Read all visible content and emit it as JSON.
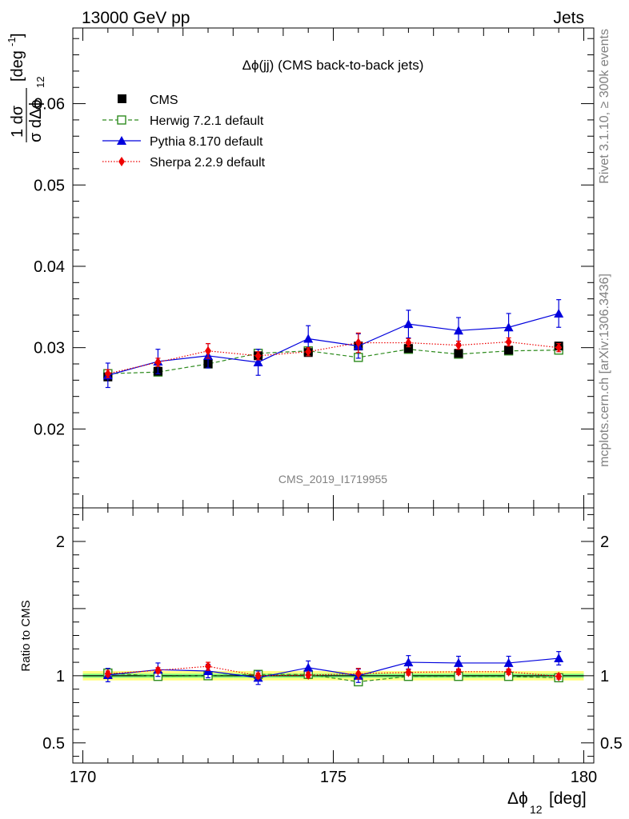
{
  "header": {
    "left": "13000 GeV pp",
    "right": "Jets"
  },
  "side": {
    "rivet": "Rivet 3.1.10, ≥ 300k events",
    "mcplots": "mcplots.cern.ch [arXiv:1306.3436]"
  },
  "colors": {
    "cms": "#000000",
    "herwig": "#2e8b1e",
    "pythia": "#0000dd",
    "sherpa": "#ee0000",
    "band_outer": "#ffff80",
    "band_inner": "#80ff80"
  },
  "chart_data": [
    {
      "type": "line",
      "title": "Δϕ(jj) (CMS back-to-back jets)",
      "watermark": "CMS_2019_I1719955",
      "ylabel": "1/σ dσ/dΔϕ_12 [deg^-1]",
      "ylabel_main": "[deg",
      "ylabel_sup": "-1",
      "ylabel_frac_num": "1  dσ",
      "ylabel_frac_den": "σ dΔϕ",
      "ylabel_sub": "12",
      "xlabel": "Δϕ",
      "xlabel_sub": "12",
      "xlabel_unit": "[deg]",
      "xlim": [
        169.8,
        180.2
      ],
      "ylim": [
        0.0103,
        0.0693
      ],
      "yticks": [
        "0.02",
        "0.03",
        "0.04",
        "0.05",
        "0.06"
      ],
      "xticks": [
        "170",
        "175",
        "180"
      ],
      "x": [
        170.5,
        171.5,
        172.5,
        173.5,
        174.5,
        175.5,
        176.5,
        177.5,
        178.5,
        179.5
      ],
      "series": [
        {
          "name": "CMS",
          "values": [
            0.0264,
            0.0271,
            0.028,
            0.029,
            0.0294,
            0.0302,
            0.0299,
            0.0293,
            0.0297,
            0.0302
          ]
        },
        {
          "name": "Herwig 7.2.1 default",
          "values": [
            0.0268,
            0.027,
            0.028,
            0.0293,
            0.0296,
            0.0288,
            0.0298,
            0.0292,
            0.0296,
            0.0297
          ]
        },
        {
          "name": "Pythia 8.170 default",
          "values": [
            0.0266,
            0.0283,
            0.029,
            0.0282,
            0.0311,
            0.0302,
            0.0329,
            0.0321,
            0.0325,
            0.0342
          ],
          "err": [
            0.0015,
            0.0015,
            0.0015,
            0.0016,
            0.0016,
            0.0015,
            0.0017,
            0.0016,
            0.0017,
            0.0017
          ]
        },
        {
          "name": "Sherpa 2.2.9 default",
          "values": [
            0.0268,
            0.0282,
            0.0296,
            0.029,
            0.0295,
            0.0306,
            0.0306,
            0.0303,
            0.0307,
            0.03
          ],
          "err": [
            0.0005,
            0.0005,
            0.0009,
            0.0005,
            0.0005,
            0.0012,
            0.0005,
            0.0005,
            0.0005,
            0.0005
          ]
        }
      ]
    },
    {
      "type": "line",
      "ylabel": "Ratio to CMS",
      "xlim": [
        169.8,
        180.2
      ],
      "ylim": [
        0.35,
        2.25
      ],
      "yticks": [
        "0.5",
        "1",
        "2"
      ],
      "x": [
        170.5,
        171.5,
        172.5,
        173.5,
        174.5,
        175.5,
        176.5,
        177.5,
        178.5,
        179.5
      ],
      "band_outer": [
        0.035,
        0.035,
        0.035,
        0.035,
        0.035,
        0.035,
        0.035,
        0.035,
        0.035,
        0.035
      ],
      "band_inner": [
        0.015,
        0.015,
        0.015,
        0.015,
        0.015,
        0.015,
        0.015,
        0.015,
        0.015,
        0.015
      ],
      "series": [
        {
          "name": "Herwig 7.2.1 default",
          "values": [
            1.02,
            0.995,
            1.0,
            1.01,
            1.01,
            0.955,
            0.995,
            0.995,
            0.995,
            0.985
          ]
        },
        {
          "name": "Pythia 8.170 default",
          "values": [
            1.005,
            1.045,
            1.035,
            0.985,
            1.06,
            1.0,
            1.1,
            1.095,
            1.095,
            1.13
          ],
          "err": [
            0.05,
            0.05,
            0.05,
            0.05,
            0.05,
            0.05,
            0.05,
            0.05,
            0.05,
            0.05
          ]
        },
        {
          "name": "Sherpa 2.2.9 default",
          "values": [
            1.015,
            1.04,
            1.07,
            1.0,
            1.005,
            1.015,
            1.025,
            1.03,
            1.03,
            0.995
          ],
          "err": [
            0.02,
            0.02,
            0.03,
            0.02,
            0.02,
            0.04,
            0.02,
            0.02,
            0.02,
            0.02
          ]
        }
      ]
    }
  ]
}
